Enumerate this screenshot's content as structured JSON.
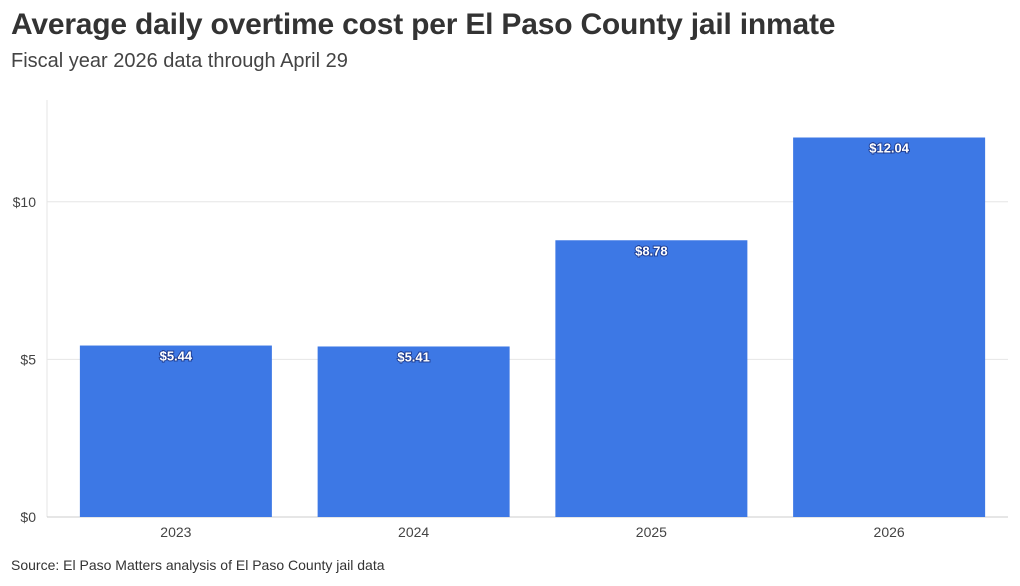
{
  "title": "Average daily overtime cost per El Paso County jail inmate",
  "subtitle": "Fiscal year 2026 data through April 29",
  "source": "Source: El Paso Matters analysis of El Paso County jail data",
  "colors": {
    "bar": "#3d78e5",
    "grid": "#e6e6e6",
    "axis": "#cccccc"
  },
  "chart_data": {
    "type": "bar",
    "categories": [
      "2023",
      "2024",
      "2025",
      "2026"
    ],
    "values": [
      5.44,
      5.41,
      8.78,
      12.04
    ],
    "data_labels": [
      "$5.44",
      "$5.41",
      "$8.78",
      "$12.04"
    ],
    "yticks": [
      0,
      5,
      10
    ],
    "ytick_labels": [
      "$0",
      "$5",
      "$10"
    ],
    "ylim": [
      0,
      13.23
    ],
    "grid": true,
    "xlabel": "",
    "ylabel": ""
  }
}
